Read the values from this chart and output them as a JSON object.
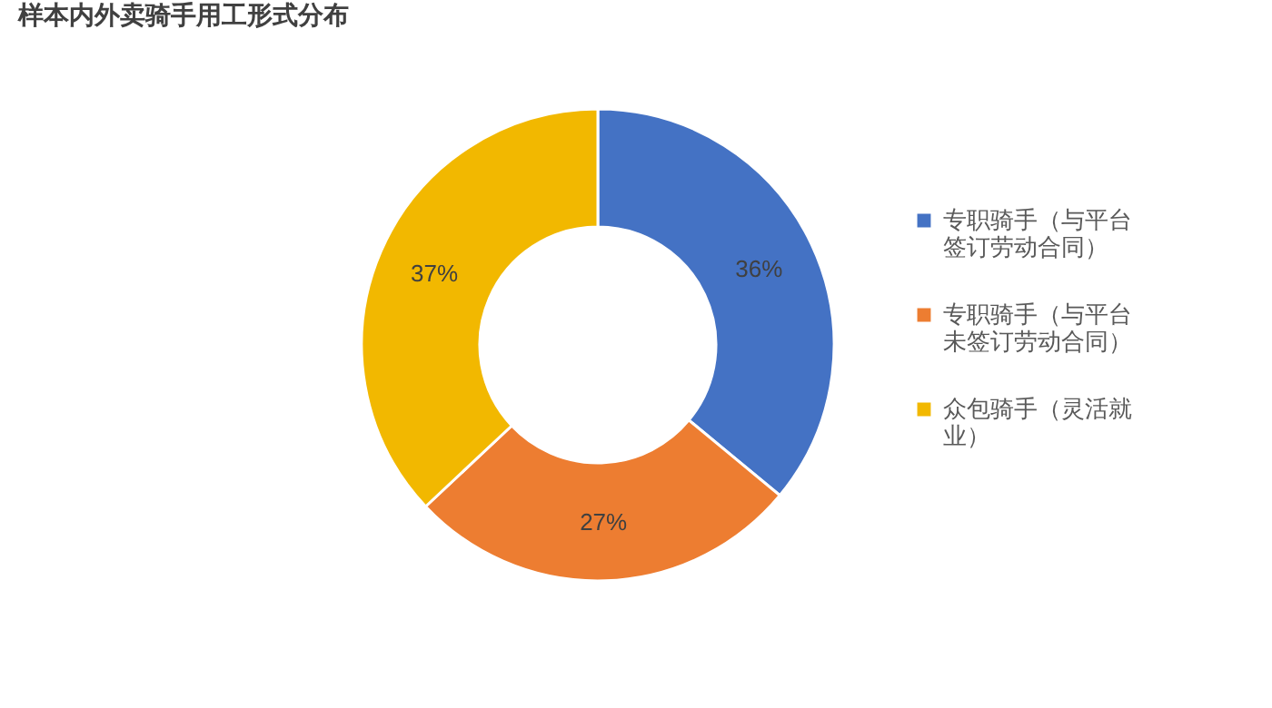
{
  "chart_data": {
    "type": "donut",
    "title": "样本内外卖骑手用工形式分布",
    "categories": [
      "专职骑手（与平台签订劳动合同）",
      "专职骑手（与平台未签订劳动合同）",
      "众包骑手（灵活就业）"
    ],
    "values": [
      36,
      27,
      37
    ],
    "colors": [
      "#4472c4",
      "#ed7d31",
      "#f2b800"
    ],
    "value_labels": [
      "36%",
      "27%",
      "37%"
    ],
    "legend": "right"
  }
}
